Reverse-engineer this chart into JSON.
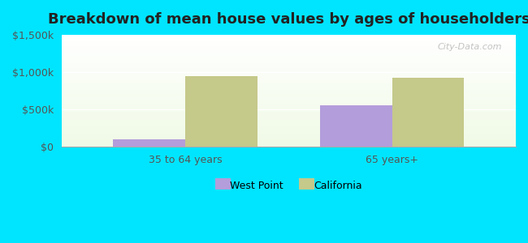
{
  "title": "Breakdown of mean house values by ages of householders",
  "categories": [
    "35 to 64 years",
    "65 years+"
  ],
  "west_point_values": [
    100000,
    550000
  ],
  "california_values": [
    950000,
    920000
  ],
  "west_point_color": "#b39ddb",
  "california_color": "#c5c98a",
  "ylim": [
    0,
    1500000
  ],
  "yticks": [
    0,
    500000,
    1000000,
    1500000
  ],
  "ytick_labels": [
    "$0",
    "$500k",
    "$1,000k",
    "$1,500k"
  ],
  "background_color": "#00e5ff",
  "legend_west_point": "West Point",
  "legend_california": "California",
  "watermark": "City-Data.com",
  "bar_width": 0.35
}
